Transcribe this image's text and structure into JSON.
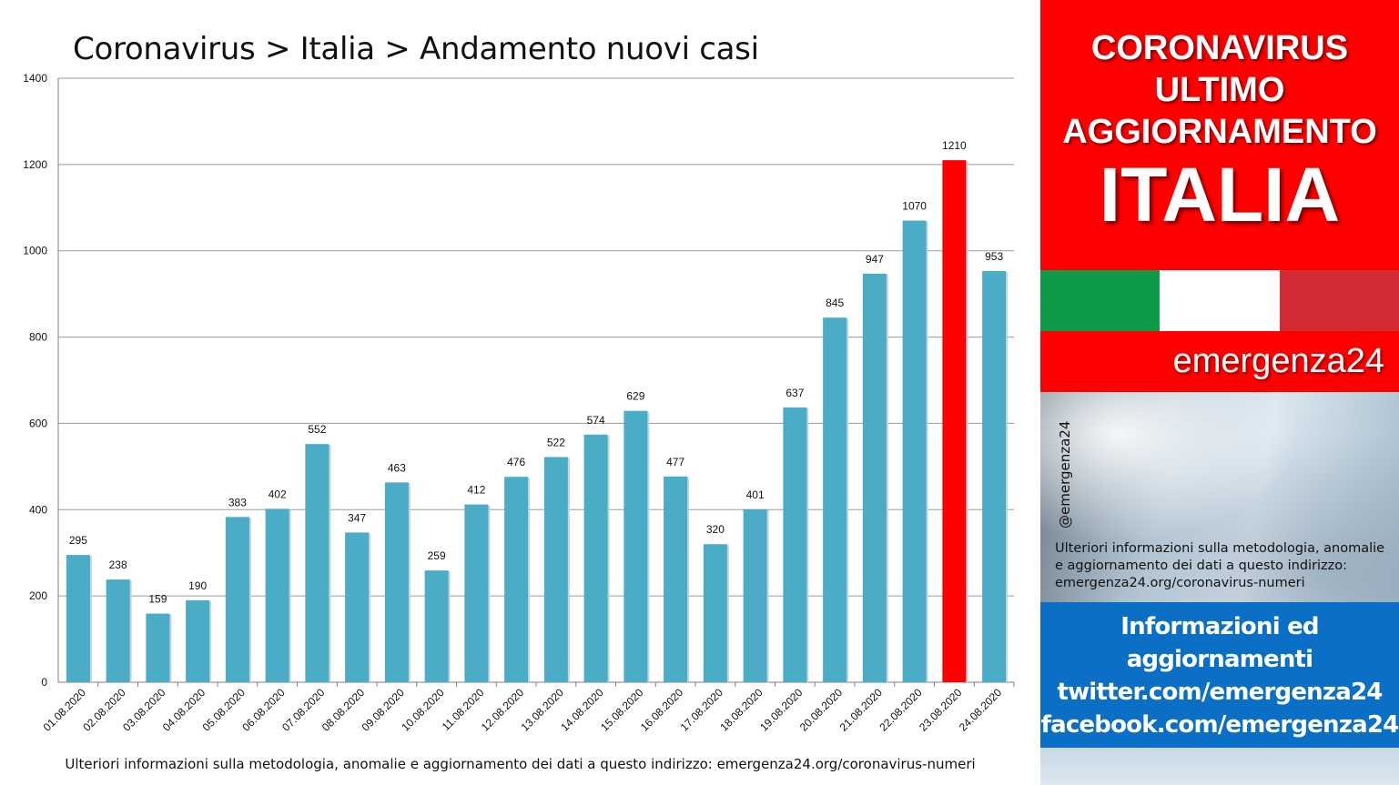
{
  "chart_data": {
    "type": "bar",
    "title": "Coronavirus > Italia > Andamento nuovi casi",
    "categories": [
      "01.08.2020",
      "02.08.2020",
      "03.08.2020",
      "04.08.2020",
      "05.08.2020",
      "06.08.2020",
      "07.08.2020",
      "08.08.2020",
      "09.08.2020",
      "10.08.2020",
      "11.08.2020",
      "12.08.2020",
      "13.08.2020",
      "14.08.2020",
      "15.08.2020",
      "16.08.2020",
      "17.08.2020",
      "18.08.2020",
      "19.08.2020",
      "20.08.2020",
      "21.08.2020",
      "22.08.2020",
      "23.08.2020",
      "24.08.2020"
    ],
    "values": [
      295,
      238,
      159,
      190,
      383,
      402,
      552,
      347,
      463,
      259,
      412,
      476,
      522,
      574,
      629,
      477,
      320,
      401,
      637,
      845,
      947,
      1070,
      1210,
      953
    ],
    "highlight_index": 22,
    "ylim": [
      0,
      1400
    ],
    "yticks": [
      0,
      200,
      400,
      600,
      800,
      1000,
      1200,
      1400
    ],
    "grid": true,
    "bar_color": "#4bacc6",
    "highlight_color": "#ff0000",
    "xlabel": "",
    "ylabel": ""
  },
  "footnote": "Ulteriori informazioni sulla metodologia, anomalie e aggiornamento dei dati a questo indirizzo: emergenza24.org/coronavirus-numeri",
  "sidebar": {
    "header_lines": [
      "CORONAVIRUS",
      "ULTIMO",
      "AGGIORNAMENTO"
    ],
    "header_big": "ITALIA",
    "brand": "emergenza24",
    "handle": "@emergenza24",
    "note_lines": [
      "Ulteriori informazioni sulla metodologia, anomalie",
      "e aggiornamento dei dati a questo indirizzo:",
      "emergenza24.org/coronavirus-numeri"
    ],
    "info_lines": [
      "Informazioni ed",
      "aggiornamenti",
      "twitter.com/emergenza24",
      "facebook.com/emergenza24"
    ],
    "colors": {
      "red": "#ff0000",
      "blue": "#0b6fc6",
      "flag_green": "#0f9a48",
      "flag_white": "#ffffff",
      "flag_red": "#d12c34"
    }
  }
}
